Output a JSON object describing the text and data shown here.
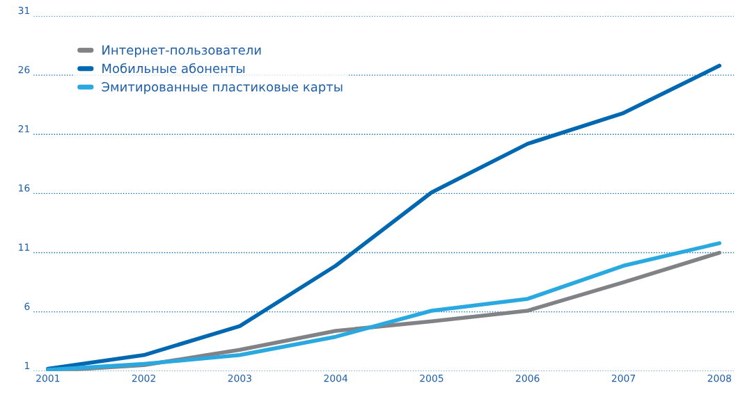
{
  "chart_data": {
    "type": "line",
    "categories": [
      "2001",
      "2002",
      "2003",
      "2004",
      "2005",
      "2006",
      "2007",
      "2008"
    ],
    "series": [
      {
        "name": "Интернет-пользователи",
        "color": "#808285",
        "values": [
          1.0,
          1.5,
          2.8,
          4.4,
          5.2,
          6.1,
          8.5,
          11.0
        ]
      },
      {
        "name": "Мобильные абоненты",
        "color": "#0067b1",
        "values": [
          1.2,
          2.35,
          4.8,
          9.9,
          16.1,
          20.2,
          22.8,
          26.8
        ]
      },
      {
        "name": "Эмитированные пластиковые карты",
        "color": "#29a9e0",
        "values": [
          1.1,
          1.6,
          2.35,
          3.9,
          6.1,
          7.1,
          9.9,
          11.8
        ]
      }
    ],
    "ylim": [
      1,
      31
    ],
    "yticks": [
      1,
      6,
      11,
      16,
      21,
      26,
      31
    ],
    "grid": "y",
    "legend": "top left",
    "marker": "none",
    "line_style": "solid"
  }
}
